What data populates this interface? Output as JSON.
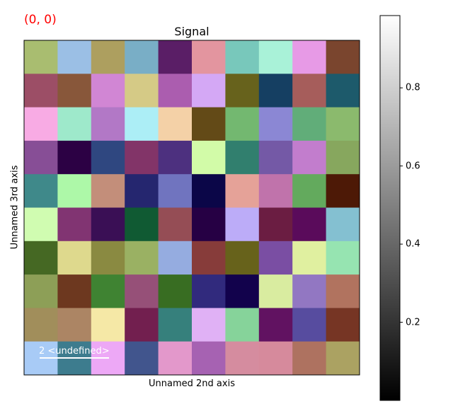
{
  "coordinate_readout": "(0, 0)",
  "chart_data": {
    "type": "heatmap",
    "title": "Signal",
    "xlabel": "Unnamed 2nd axis",
    "ylabel": "Unnamed 3rd axis",
    "rows": 10,
    "cols": 10,
    "cells": [
      [
        "#a9bd70",
        "#9bbfe5",
        "#ad9f5f",
        "#79aec6",
        "#5a1e66",
        "#e3959f",
        "#78c8bb",
        "#a9f2d8",
        "#e79ae6",
        "#7a452e"
      ],
      [
        "#9c4e66",
        "#88573a",
        "#d186d4",
        "#d5ca86",
        "#ab5daf",
        "#d4a8f5",
        "#67621c",
        "#153f62",
        "#a65d5b",
        "#1d5a6b"
      ],
      [
        "#f8abe4",
        "#9ee9cb",
        "#b278c6",
        "#aceef6",
        "#f4d1a7",
        "#634a17",
        "#73b870",
        "#8b87d4",
        "#61ad79",
        "#8bba6d"
      ],
      [
        "#874e96",
        "#2c0144",
        "#2f4780",
        "#823468",
        "#4d307f",
        "#d2fba8",
        "#317f6e",
        "#7459a6",
        "#c27dcd",
        "#87a75e"
      ],
      [
        "#3f898a",
        "#adf8a8",
        "#c38e7a",
        "#25266f",
        "#7074bf",
        "#0b0648",
        "#e5a298",
        "#c073ab",
        "#63aa5d",
        "#4d1906"
      ],
      [
        "#d0fcb1",
        "#813472",
        "#3a0f55",
        "#105a33",
        "#954d55",
        "#260044",
        "#bcacf8",
        "#6b1d42",
        "#5a0b5b",
        "#84c0d1"
      ],
      [
        "#456823",
        "#ded98d",
        "#8a8a41",
        "#9ab163",
        "#95ace0",
        "#873c3a",
        "#67621b",
        "#7a4ea3",
        "#e0f0a0",
        "#96e4b1"
      ],
      [
        "#8d9f57",
        "#6d381f",
        "#3f8332",
        "#965078",
        "#386d22",
        "#312a7d",
        "#12024c",
        "#d9eca0",
        "#9277c2",
        "#b1735f"
      ],
      [
        "#a18e5b",
        "#ac8564",
        "#f5e8a6",
        "#721f4f",
        "#36807c",
        "#e0b1f5",
        "#86d39a",
        "#611261",
        "#574c9f",
        "#763524"
      ],
      [
        "#a8cbf6",
        "#3d7c8e",
        "#eda8f6",
        "#41558d",
        "#e398cb",
        "#a662b2",
        "#d58c9f",
        "#d68a9c",
        "#ae7260",
        "#aba262"
      ]
    ],
    "colorbar": {
      "colormap": "gray",
      "ticks": [
        "0.2",
        "0.4",
        "0.6",
        "0.8"
      ],
      "range": [
        0.0,
        0.985
      ]
    },
    "scalebar": {
      "label": "2 <undefined>",
      "color": "#ffffff"
    }
  }
}
